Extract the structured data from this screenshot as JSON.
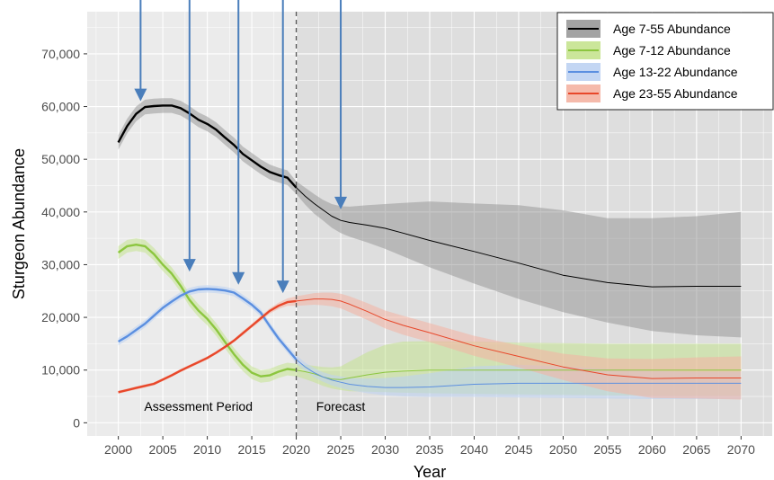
{
  "chart_data": {
    "type": "line",
    "title": "",
    "xlabel": "Year",
    "ylabel": "Sturgeon Abundance",
    "xlim": [
      1996.5,
      2073.5
    ],
    "ylim": [
      -2500,
      78000
    ],
    "x_ticks": [
      2000,
      2005,
      2010,
      2015,
      2020,
      2025,
      2030,
      2035,
      2040,
      2045,
      2050,
      2055,
      2060,
      2065,
      2070
    ],
    "x_tick_labels": [
      "2000",
      "2005",
      "2010",
      "2015",
      "2020",
      "2025",
      "2030",
      "2035",
      "2040",
      "2045",
      "2050",
      "2055",
      "2060",
      "2065",
      "2070"
    ],
    "y_ticks": [
      0,
      10000,
      20000,
      30000,
      40000,
      50000,
      60000,
      70000
    ],
    "y_tick_labels": [
      "0",
      "10,000",
      "20,000",
      "30,000",
      "40,000",
      "50,000",
      "60,000",
      "70,000"
    ],
    "grid": true,
    "forecast_start": 2020,
    "legend_position": "top-right",
    "annotations": [
      {
        "text": "Assessment Period",
        "x": 2009,
        "y": 2300
      },
      {
        "text": "Forecast",
        "x": 2025,
        "y": 2300
      }
    ],
    "arrows": [
      {
        "x": 2002.5,
        "y_tip": 61000
      },
      {
        "x": 2008,
        "y_tip": 28700
      },
      {
        "x": 2013.5,
        "y_tip": 26200
      },
      {
        "x": 2018.5,
        "y_tip": 24600
      },
      {
        "x": 2025,
        "y_tip": 40500
      }
    ],
    "series": [
      {
        "name": "Age 7-55 Abundance",
        "color": "#000000",
        "band_color": "#999999",
        "x": [
          2000,
          2001,
          2002,
          2003,
          2004,
          2005,
          2006,
          2007,
          2008,
          2009,
          2010,
          2011,
          2012,
          2013,
          2014,
          2015,
          2016,
          2017,
          2018,
          2019,
          2020,
          2021,
          2022,
          2023,
          2024,
          2025,
          2026,
          2028,
          2030,
          2032,
          2035,
          2040,
          2045,
          2050,
          2055,
          2060,
          2065,
          2070
        ],
        "values": [
          53200,
          56300,
          58600,
          59900,
          60100,
          60200,
          60200,
          59700,
          58700,
          57500,
          56700,
          55600,
          54100,
          52700,
          51000,
          49800,
          48600,
          47600,
          47000,
          46500,
          44600,
          43000,
          41600,
          40400,
          39200,
          38400,
          38000,
          37500,
          36900,
          36000,
          34600,
          32500,
          30300,
          28000,
          26600,
          25800,
          25900,
          25900
        ],
        "upper": [
          54600,
          57700,
          60000,
          61300,
          61500,
          61600,
          61600,
          61100,
          60100,
          58900,
          58100,
          57000,
          55500,
          54100,
          52400,
          51200,
          50000,
          49000,
          48400,
          47900,
          45800,
          44600,
          43400,
          42300,
          41500,
          41100,
          41000,
          41300,
          41500,
          41700,
          42000,
          41600,
          41300,
          40300,
          38800,
          38800,
          39200,
          40000
        ],
        "lower": [
          51800,
          54900,
          57200,
          58500,
          58700,
          58800,
          58800,
          58300,
          57300,
          56100,
          55300,
          54200,
          52700,
          51300,
          49600,
          48400,
          47200,
          46200,
          45600,
          45100,
          43400,
          41400,
          39700,
          38400,
          37000,
          36000,
          35300,
          34200,
          33000,
          31600,
          29500,
          26400,
          23500,
          21000,
          19000,
          17400,
          16600,
          16200
        ]
      },
      {
        "name": "Age 7-12 Abundance",
        "color": "#8cc63f",
        "band_color": "#c5e38f",
        "x": [
          2000,
          2001,
          2002,
          2003,
          2004,
          2005,
          2006,
          2007,
          2008,
          2009,
          2010,
          2011,
          2012,
          2013,
          2014,
          2015,
          2016,
          2017,
          2018,
          2019,
          2020,
          2021,
          2022,
          2023,
          2024,
          2025,
          2026,
          2028,
          2030,
          2032,
          2035,
          2040,
          2045,
          2050,
          2055,
          2060,
          2065,
          2070
        ],
        "values": [
          32300,
          33500,
          33800,
          33500,
          32000,
          30000,
          28300,
          26000,
          23300,
          21300,
          19700,
          17700,
          15300,
          13000,
          11000,
          9500,
          8800,
          9000,
          9700,
          10200,
          10000,
          9700,
          9300,
          8700,
          8300,
          8200,
          8500,
          9100,
          9600,
          9800,
          10000,
          10000,
          10000,
          10000,
          10000,
          10000,
          10000,
          10000
        ],
        "upper": [
          33500,
          34700,
          35000,
          34700,
          33200,
          31200,
          29500,
          27200,
          24500,
          22500,
          20900,
          18900,
          16500,
          14200,
          12200,
          10700,
          10000,
          10200,
          10900,
          11400,
          11200,
          11000,
          10800,
          10600,
          10500,
          10700,
          11600,
          13400,
          14800,
          15400,
          15500,
          15400,
          15200,
          15100,
          15000,
          15000,
          15000,
          15000
        ],
        "lower": [
          31100,
          32300,
          32600,
          32300,
          30800,
          28800,
          27100,
          24800,
          22100,
          20100,
          18500,
          16500,
          14100,
          11800,
          9800,
          8300,
          7600,
          7800,
          8500,
          9000,
          8800,
          8300,
          7700,
          7000,
          6500,
          6200,
          6000,
          5900,
          5800,
          5700,
          5600,
          5500,
          5400,
          5300,
          5200,
          5100,
          5100,
          5100
        ]
      },
      {
        "name": "Age 13-22 Abundance",
        "color": "#5b8fe0",
        "band_color": "#bcd2f2",
        "x": [
          2000,
          2001,
          2002,
          2003,
          2004,
          2005,
          2006,
          2007,
          2008,
          2009,
          2010,
          2011,
          2012,
          2013,
          2014,
          2015,
          2016,
          2017,
          2018,
          2019,
          2020,
          2021,
          2022,
          2023,
          2024,
          2025,
          2026,
          2028,
          2030,
          2032,
          2035,
          2040,
          2045,
          2050,
          2055,
          2060,
          2065,
          2070
        ],
        "values": [
          15400,
          16400,
          17600,
          18800,
          20300,
          21800,
          23000,
          24100,
          24900,
          25300,
          25400,
          25300,
          25100,
          24700,
          23600,
          22400,
          20900,
          18400,
          16000,
          14000,
          12000,
          10600,
          9500,
          8700,
          8100,
          7700,
          7300,
          6900,
          6700,
          6700,
          6800,
          7300,
          7500,
          7500,
          7500,
          7500,
          7500,
          7500
        ],
        "upper": [
          16100,
          17100,
          18300,
          19500,
          21000,
          22500,
          23700,
          24800,
          25600,
          26000,
          26100,
          26000,
          25800,
          25400,
          24300,
          23100,
          21600,
          19100,
          16700,
          14700,
          12800,
          11400,
          10400,
          9600,
          9100,
          8800,
          8500,
          8400,
          8500,
          8800,
          9400,
          10700,
          11000,
          10700,
          10200,
          9800,
          9700,
          9700
        ],
        "lower": [
          14700,
          15700,
          16900,
          18100,
          19600,
          21100,
          22300,
          23400,
          24200,
          24600,
          24700,
          24600,
          24400,
          24000,
          22900,
          21700,
          20200,
          17700,
          15300,
          13300,
          11200,
          9800,
          8600,
          7800,
          7100,
          6600,
          6200,
          5600,
          5200,
          5000,
          4900,
          4900,
          4800,
          4700,
          4600,
          4500,
          4500,
          4500
        ]
      },
      {
        "name": "Age 23-55 Abundance",
        "color": "#e8472a",
        "band_color": "#f4b2a2",
        "x": [
          2000,
          2001,
          2002,
          2003,
          2004,
          2005,
          2006,
          2007,
          2008,
          2009,
          2010,
          2011,
          2012,
          2013,
          2014,
          2015,
          2016,
          2017,
          2018,
          2019,
          2020,
          2021,
          2022,
          2023,
          2024,
          2025,
          2026,
          2028,
          2030,
          2032,
          2035,
          2040,
          2045,
          2050,
          2055,
          2060,
          2065,
          2070
        ],
        "values": [
          5800,
          6200,
          6600,
          7000,
          7400,
          8200,
          9000,
          9900,
          10700,
          11500,
          12300,
          13300,
          14400,
          15600,
          17000,
          18400,
          19800,
          21200,
          22200,
          22900,
          23100,
          23300,
          23500,
          23500,
          23400,
          23100,
          22500,
          21100,
          19600,
          18500,
          17100,
          14600,
          12600,
          10600,
          9100,
          8400,
          8500,
          8500
        ],
        "upper": [
          6100,
          6500,
          6900,
          7300,
          7700,
          8500,
          9300,
          10200,
          11000,
          11800,
          12600,
          13600,
          14700,
          15900,
          17400,
          18800,
          20300,
          21700,
          22800,
          23600,
          24000,
          24300,
          24600,
          24700,
          24700,
          24500,
          24000,
          22700,
          21300,
          20300,
          18900,
          16500,
          14700,
          13100,
          12200,
          12100,
          12400,
          12600
        ],
        "lower": [
          5500,
          5900,
          6300,
          6700,
          7100,
          7900,
          8700,
          9600,
          10400,
          11200,
          12000,
          13000,
          14100,
          15300,
          16600,
          18000,
          19300,
          20700,
          21600,
          22200,
          22200,
          22300,
          22400,
          22300,
          22100,
          21700,
          21000,
          19500,
          17900,
          16700,
          15300,
          12700,
          10500,
          8100,
          6000,
          4700,
          4600,
          4400
        ]
      }
    ]
  }
}
